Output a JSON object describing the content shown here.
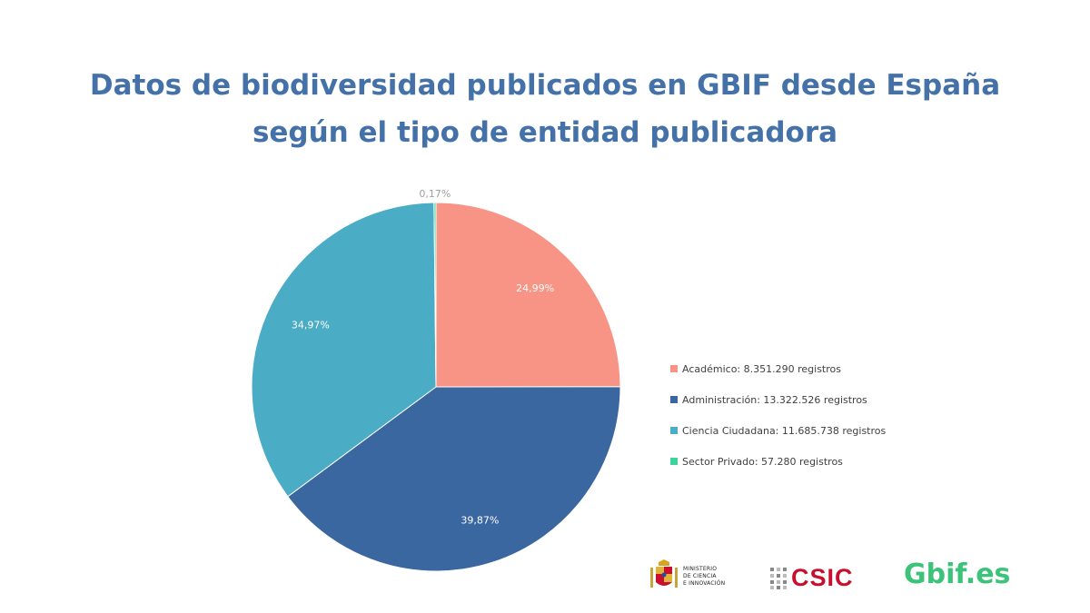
{
  "title_line1": "Datos de biodiversidad publicados en GBIF desde España",
  "title_line2": "según el tipo de entidad publicadora",
  "chart_data": {
    "type": "pie",
    "slices": [
      {
        "name": "Académico",
        "value": 8351290,
        "label": "24,99%",
        "color": "#F89485",
        "legend": "Académico: 8.351.290 registros"
      },
      {
        "name": "Administración",
        "value": 13322526,
        "label": "39,87%",
        "color": "#3B67A1",
        "legend": "Administración: 13.322.526 registros"
      },
      {
        "name": "Ciencia Ciudadana",
        "value": 11685738,
        "label": "34,97%",
        "color": "#4BACC6",
        "legend": "Ciencia Ciudadana: 11.685.738 registros"
      },
      {
        "name": "Sector Privado",
        "value": 57280,
        "label": "0,17%",
        "color": "#3DD39C",
        "legend": "Sector Privado: 57.280 registros"
      }
    ],
    "legend_position": "right"
  },
  "logos": {
    "ministerio": "MINISTERIO\nDE CIENCIA\nE INNOVACIÓN",
    "csic": "CSIC",
    "gbif": "Gbif.es"
  }
}
